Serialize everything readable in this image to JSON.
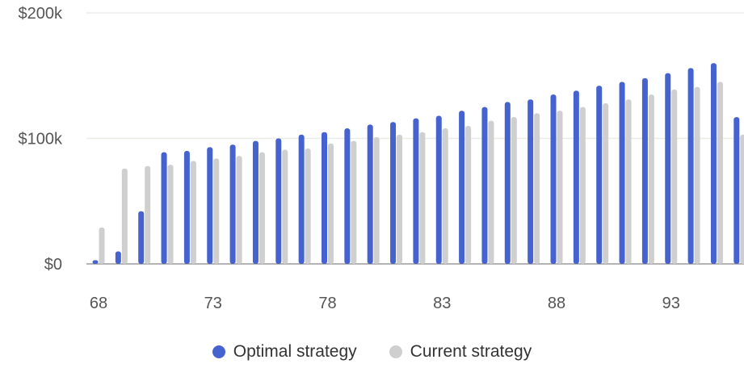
{
  "chart_data": {
    "type": "bar",
    "x": [
      68,
      69,
      70,
      71,
      72,
      73,
      74,
      75,
      76,
      77,
      78,
      79,
      80,
      81,
      82,
      83,
      84,
      85,
      86,
      87,
      88,
      89,
      90,
      91,
      92,
      93,
      94,
      95,
      96
    ],
    "x_ticks": [
      "68",
      "73",
      "78",
      "83",
      "88",
      "93"
    ],
    "y_ticks": [
      "$0",
      "$100k",
      "$200k"
    ],
    "ylim": [
      0,
      200000
    ],
    "grid": true,
    "legend_position": "bottom-center",
    "series": [
      {
        "name": "Optimal strategy",
        "color": "#4562cf",
        "values": [
          3000,
          10000,
          42000,
          89000,
          90000,
          93000,
          95000,
          98000,
          100000,
          103000,
          105000,
          108000,
          111000,
          113000,
          116000,
          118000,
          122000,
          125000,
          129000,
          131000,
          135000,
          138000,
          142000,
          145000,
          148000,
          152000,
          156000,
          160000,
          117000
        ]
      },
      {
        "name": "Current strategy",
        "color": "#cfcfcf",
        "values": [
          29000,
          76000,
          78000,
          79000,
          82000,
          84000,
          86000,
          89000,
          91000,
          92000,
          96000,
          98000,
          101000,
          103000,
          105000,
          108000,
          110000,
          114000,
          117000,
          120000,
          122000,
          125000,
          128000,
          131000,
          135000,
          139000,
          141000,
          145000,
          103000
        ]
      }
    ]
  }
}
